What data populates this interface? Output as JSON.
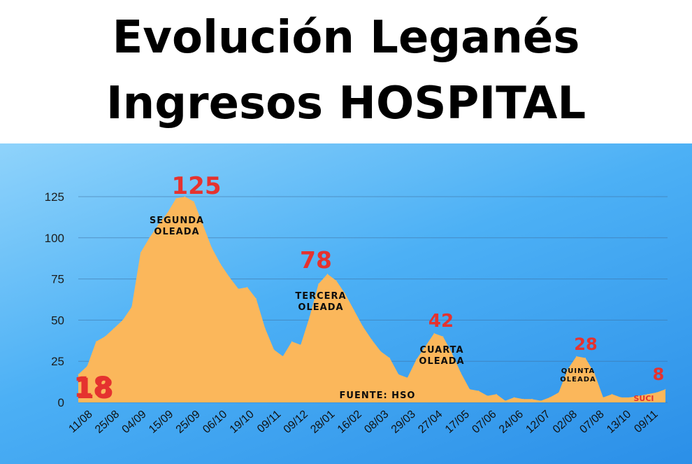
{
  "title": {
    "line1": "Evolución Leganés",
    "line2": "Ingresos HOSPITAL"
  },
  "colors": {
    "area_fill": "#fbb75b",
    "peak_label": "#e5322f",
    "gridline": "#3e6f9e",
    "panel_top": "#8fd3fb",
    "panel_bottom": "#2b8fe8"
  },
  "chart_data": {
    "type": "area",
    "title": "Evolución Leganés Ingresos HOSPITAL",
    "xlabel": "",
    "ylabel": "",
    "ylim": [
      0,
      125
    ],
    "yticks": [
      0,
      25,
      50,
      75,
      100,
      125
    ],
    "grid": true,
    "x_tick_labels": [
      "11/08",
      "25/08",
      "04/09",
      "15/09",
      "25/09",
      "06/10",
      "19/10",
      "09/11",
      "09/12",
      "28/01",
      "16/02",
      "08/03",
      "29/03",
      "27/04",
      "17/05",
      "07/06",
      "24/06",
      "12/07",
      "02/08",
      "07/08",
      "13/10",
      "09/11"
    ],
    "series": [
      {
        "values": [
          17,
          22,
          37,
          40,
          45,
          50,
          58,
          91,
          100,
          108,
          115,
          124,
          125,
          122,
          108,
          94,
          84,
          76,
          69,
          70,
          63,
          45,
          32,
          28,
          37,
          35,
          52,
          72,
          78,
          74,
          66,
          56,
          46,
          38,
          31,
          27,
          17,
          15,
          26,
          34,
          42,
          40,
          30,
          18,
          8,
          7,
          4,
          5,
          1,
          3,
          2,
          2,
          1,
          3,
          6,
          20,
          28,
          27,
          18,
          3,
          5,
          3,
          3,
          4,
          5,
          6,
          8
        ]
      }
    ],
    "annotations": {
      "peaks": [
        {
          "text": "18",
          "value": 18
        },
        {
          "text": "125",
          "value": 125
        },
        {
          "text": "78",
          "value": 78
        },
        {
          "text": "42",
          "value": 42
        },
        {
          "text": "28",
          "value": 28
        },
        {
          "text": "8",
          "value": 8
        }
      ],
      "waves": [
        {
          "line1": "SEGUNDA",
          "line2": "OLEADA"
        },
        {
          "line1": "TERCERA",
          "line2": "OLEADA"
        },
        {
          "line1": "CUARTA",
          "line2": "OLEADA"
        },
        {
          "line1": "QUINTA",
          "line2": "OLEADA"
        }
      ],
      "source": "FUENTE: HSO",
      "suci": "SUCI"
    }
  }
}
